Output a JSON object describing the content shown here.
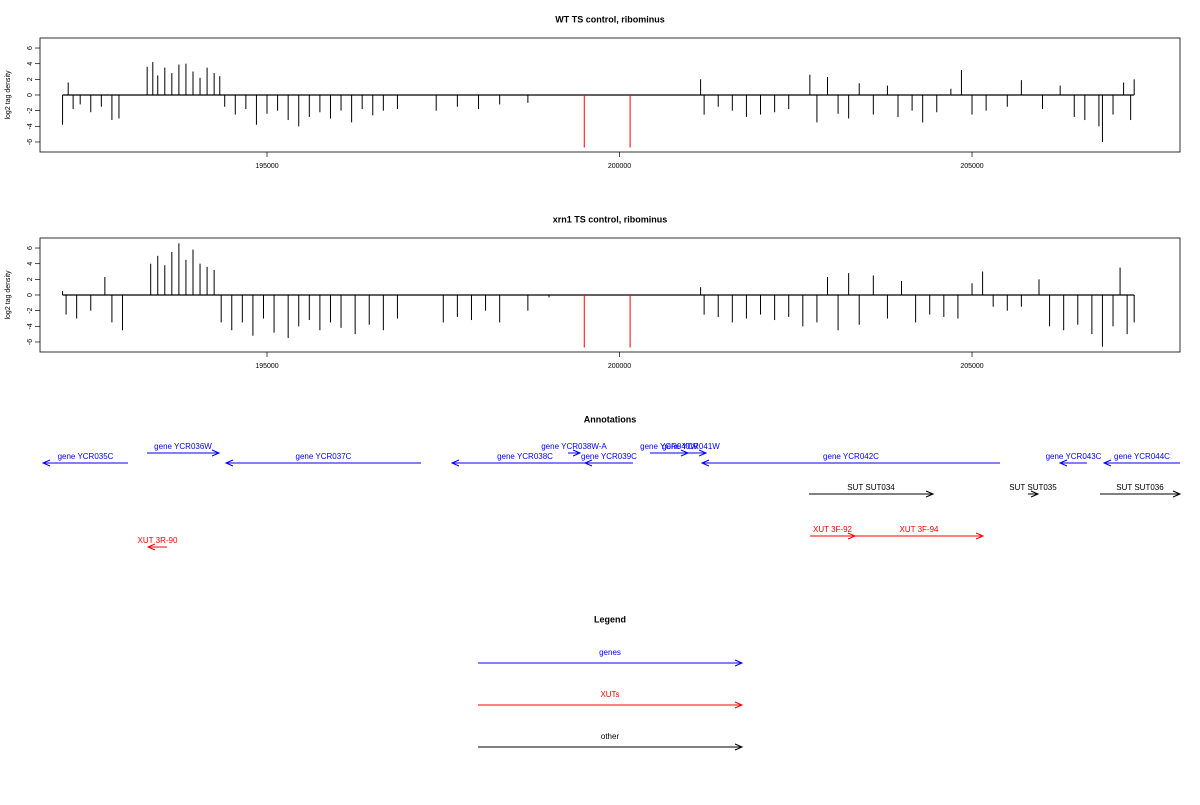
{
  "chart_data": [
    {
      "type": "bar",
      "title": "WT TS control, ribominus",
      "ylabel": "log2 tag density",
      "xlim": [
        191780,
        207950
      ],
      "ylim": [
        -7.28,
        7.28
      ],
      "xticks": [
        195000,
        200000,
        205000
      ],
      "yticks": [
        -6,
        -4,
        -2,
        0,
        2,
        4,
        6
      ],
      "color": "#000000",
      "x": [
        192100,
        192180,
        192250,
        192350,
        192500,
        192650,
        192800,
        192900,
        193300,
        193380,
        193450,
        193550,
        193650,
        193750,
        193850,
        193950,
        194050,
        194150,
        194250,
        194330,
        194400,
        194550,
        194700,
        194850,
        195000,
        195150,
        195300,
        195450,
        195600,
        195750,
        195900,
        196050,
        196200,
        196350,
        196500,
        196650,
        196850,
        197400,
        197700,
        198000,
        198300,
        198700,
        201150,
        201200,
        201400,
        201600,
        201800,
        202000,
        202200,
        202400,
        202700,
        202800,
        202950,
        203100,
        203250,
        203400,
        203600,
        203800,
        203950,
        204150,
        204300,
        204500,
        204700,
        204850,
        205000,
        205200,
        205500,
        205700,
        206000,
        206250,
        206450,
        206600,
        206800,
        206850,
        207000,
        207150,
        207250,
        207300
      ],
      "values": [
        -3.8,
        1.6,
        -1.8,
        -1.2,
        -2.2,
        -1.5,
        -3.2,
        -3,
        3.6,
        4.2,
        2.5,
        3.5,
        2.8,
        3.9,
        4.0,
        3.0,
        2.2,
        3.5,
        2.8,
        2.4,
        -1.5,
        -2.5,
        -1.8,
        -3.8,
        -2.4,
        -2.0,
        -3.2,
        -4.0,
        -2.8,
        -2.2,
        -3.0,
        -2.0,
        -3.5,
        -1.8,
        -2.6,
        -2.0,
        -1.8,
        -2.0,
        -1.5,
        -1.8,
        -1.2,
        -1.0,
        2.0,
        -2.5,
        -1.5,
        -2.0,
        -2.8,
        -2.5,
        -2.2,
        -1.8,
        2.6,
        -3.5,
        2.3,
        -2.4,
        -3.0,
        1.5,
        -2.5,
        1.2,
        -2.8,
        -2.0,
        -3.5,
        -2.2,
        0.8,
        3.2,
        -2.5,
        -2.0,
        -1.5,
        1.9,
        -1.8,
        1.2,
        -2.8,
        -3.2,
        -4.0,
        -6.0,
        -2.5,
        1.6,
        -3.2,
        2.0
      ],
      "highlights": {
        "color": "#ff0000",
        "x": [
          199500,
          200150
        ],
        "values": [
          -6.7,
          -6.7
        ]
      }
    },
    {
      "type": "bar",
      "title": "xrn1 TS control, ribominus",
      "ylabel": "log2 tag density",
      "xlim": [
        191780,
        207950
      ],
      "ylim": [
        -7.28,
        7.28
      ],
      "xticks": [
        195000,
        200000,
        205000
      ],
      "yticks": [
        -6,
        -4,
        -2,
        0,
        2,
        4,
        6
      ],
      "color": "#000000",
      "x": [
        192100,
        192150,
        192300,
        192500,
        192700,
        192800,
        192950,
        193350,
        193450,
        193550,
        193650,
        193750,
        193850,
        193950,
        194050,
        194150,
        194250,
        194350,
        194500,
        194650,
        194800,
        194950,
        195100,
        195300,
        195450,
        195600,
        195750,
        195900,
        196050,
        196250,
        196450,
        196650,
        196850,
        197500,
        197700,
        197900,
        198100,
        198300,
        198700,
        199000,
        201150,
        201200,
        201400,
        201600,
        201800,
        202000,
        202200,
        202400,
        202600,
        202800,
        202950,
        203100,
        203250,
        203400,
        203600,
        203800,
        204000,
        204200,
        204400,
        204600,
        204800,
        205000,
        205150,
        205300,
        205500,
        205700,
        205950,
        206100,
        206300,
        206500,
        206700,
        206850,
        207000,
        207100,
        207200,
        207300
      ],
      "values": [
        0.5,
        -2.5,
        -3.0,
        -2.0,
        2.3,
        -3.5,
        -4.5,
        4.0,
        5.0,
        3.8,
        5.5,
        6.6,
        4.5,
        5.8,
        4.0,
        3.6,
        3.2,
        -3.5,
        -4.5,
        -3.5,
        -5.2,
        -3.0,
        -4.8,
        -5.5,
        -4.0,
        -3.2,
        -4.5,
        -3.5,
        -4.2,
        -5.0,
        -3.8,
        -4.5,
        -3.0,
        -3.5,
        -2.8,
        -3.2,
        -2.0,
        -3.5,
        -2.0,
        -0.3,
        1.0,
        -2.5,
        -2.8,
        -3.5,
        -3.0,
        -2.5,
        -3.2,
        -2.8,
        -4.0,
        -3.5,
        2.3,
        -4.5,
        2.8,
        -3.8,
        2.5,
        -3.0,
        1.8,
        -3.5,
        -2.5,
        -2.8,
        -3.0,
        1.5,
        3.0,
        -1.5,
        -2.0,
        -1.5,
        2.0,
        -4.0,
        -4.5,
        -3.8,
        -5.0,
        -6.6,
        -4.0,
        3.5,
        -5.0,
        -3.5
      ],
      "highlights": {
        "color": "#ff0000",
        "x": [
          199500,
          200150
        ],
        "values": [
          -6.7,
          -6.7
        ]
      }
    }
  ],
  "annotations": {
    "title": "Annotations",
    "features": [
      {
        "label": "gene YCR035C",
        "start": 191823,
        "end": 193028,
        "strand": "-",
        "color": "#0000ff"
      },
      {
        "label": "gene YCR036W",
        "start": 193298,
        "end": 194319,
        "strand": "+",
        "color": "#0000ff"
      },
      {
        "label": "gene YCR037C",
        "start": 194418,
        "end": 197184,
        "strand": "-",
        "color": "#0000ff"
      },
      {
        "label": "gene YCR038C",
        "start": 197624,
        "end": 199695,
        "strand": "-",
        "color": "#0000ff"
      },
      {
        "label": "gene YCR038W-A",
        "start": 199269,
        "end": 199440,
        "strand": "+",
        "color": "#0000ff"
      },
      {
        "label": "gene YCR039C",
        "start": 199510,
        "end": 200191,
        "strand": "-",
        "color": "#0000ff"
      },
      {
        "label": "gene YCR040W",
        "start": 200432,
        "end": 200971,
        "strand": "+",
        "color": "#0000ff"
      },
      {
        "label": "gene YCR041W",
        "start": 200801,
        "end": 201227,
        "strand": "+",
        "color": "#0000ff"
      },
      {
        "label": "gene YCR042C",
        "start": 201170,
        "end": 205397,
        "strand": "-",
        "color": "#0000ff"
      },
      {
        "label": "gene YCR043C",
        "start": 206248,
        "end": 206631,
        "strand": "-",
        "color": "#0000ff"
      },
      {
        "label": "gene YCR044C",
        "start": 206872,
        "end": 207950,
        "strand": "-",
        "color": "#0000ff"
      },
      {
        "label": "SUT SUT034",
        "start": 202688,
        "end": 204447,
        "strand": "+",
        "color": "#000000"
      },
      {
        "label": "SUT SUT035",
        "start": 205794,
        "end": 205936,
        "strand": "+",
        "color": "#000000"
      },
      {
        "label": "SUT SUT036",
        "start": 206815,
        "end": 207950,
        "strand": "+",
        "color": "#000000"
      },
      {
        "label": "XUT 3R-90",
        "start": 193312,
        "end": 193581,
        "strand": "-",
        "color": "#ff0000"
      },
      {
        "label": "XUT 3F-92",
        "start": 202702,
        "end": 203340,
        "strand": "+",
        "color": "#ff0000"
      },
      {
        "label": "XUT 3F-94",
        "start": 203340,
        "end": 205156,
        "strand": "+",
        "color": "#ff0000"
      }
    ]
  },
  "legend": {
    "title": "Legend",
    "items": [
      {
        "label": "genes",
        "color": "#0000ff"
      },
      {
        "label": "XUTs",
        "color": "#ff0000"
      },
      {
        "label": "other",
        "color": "#000000"
      }
    ]
  }
}
